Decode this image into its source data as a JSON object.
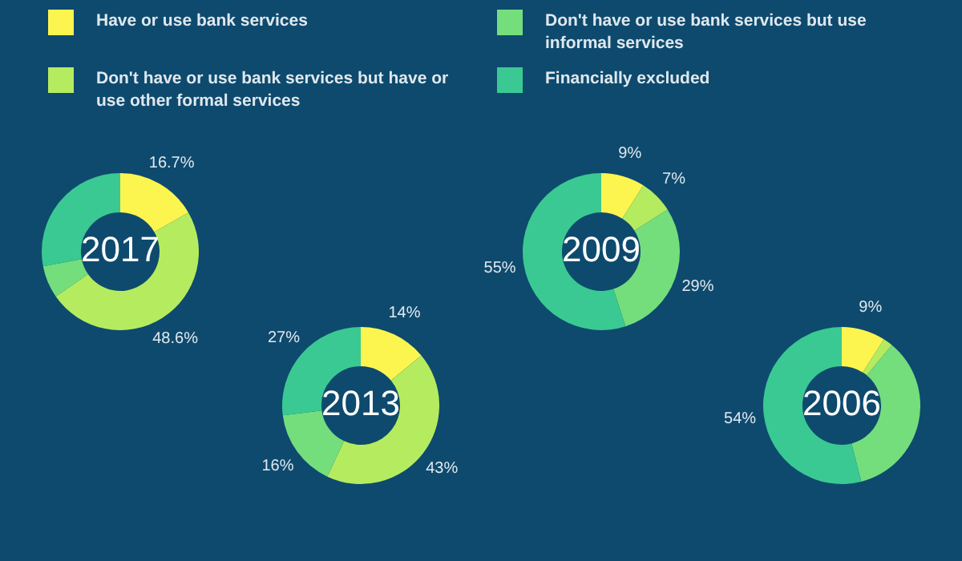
{
  "chart_data": [
    {
      "type": "donut",
      "title": "2017",
      "legend": "top",
      "categories": [
        "Have or use bank services",
        "Don't have or use bank services but have or use other formal services",
        "Don't have or use bank services but use informal services",
        "Financially excluded"
      ],
      "colors": [
        "#fdf54f",
        "#b5ec5f",
        "#74de7d",
        "#3ac992"
      ],
      "values": [
        16.7,
        48.6,
        6.7,
        28
      ],
      "value_labels": [
        "16.7%",
        "48.6%",
        null,
        null
      ]
    },
    {
      "type": "donut",
      "title": "2013",
      "categories": [
        null,
        null,
        null,
        null
      ],
      "colors": [
        "#fdf54f",
        "#b5ec5f",
        "#74de7d",
        "#3ac992"
      ],
      "values": [
        14,
        43,
        16,
        27
      ],
      "value_labels": [
        "14%",
        "43%",
        "16%",
        "27%"
      ]
    },
    {
      "type": "donut",
      "title": "2009",
      "categories": [
        null,
        null,
        null,
        null
      ],
      "colors": [
        "#fdf54f",
        "#b5ec5f",
        "#74de7d",
        "#3ac992"
      ],
      "values": [
        9,
        7,
        29,
        55
      ],
      "value_labels": [
        "9%",
        "7%",
        "29%",
        "55%"
      ]
    },
    {
      "type": "donut",
      "title": "2006",
      "categories": [
        null,
        null,
        null,
        null
      ],
      "colors": [
        "#fdf54f",
        "#b5ec5f",
        "#74de7d",
        "#3ac992"
      ],
      "values": [
        9,
        2,
        35,
        54
      ],
      "value_labels": [
        "9%",
        null,
        null,
        "54%"
      ]
    }
  ]
}
